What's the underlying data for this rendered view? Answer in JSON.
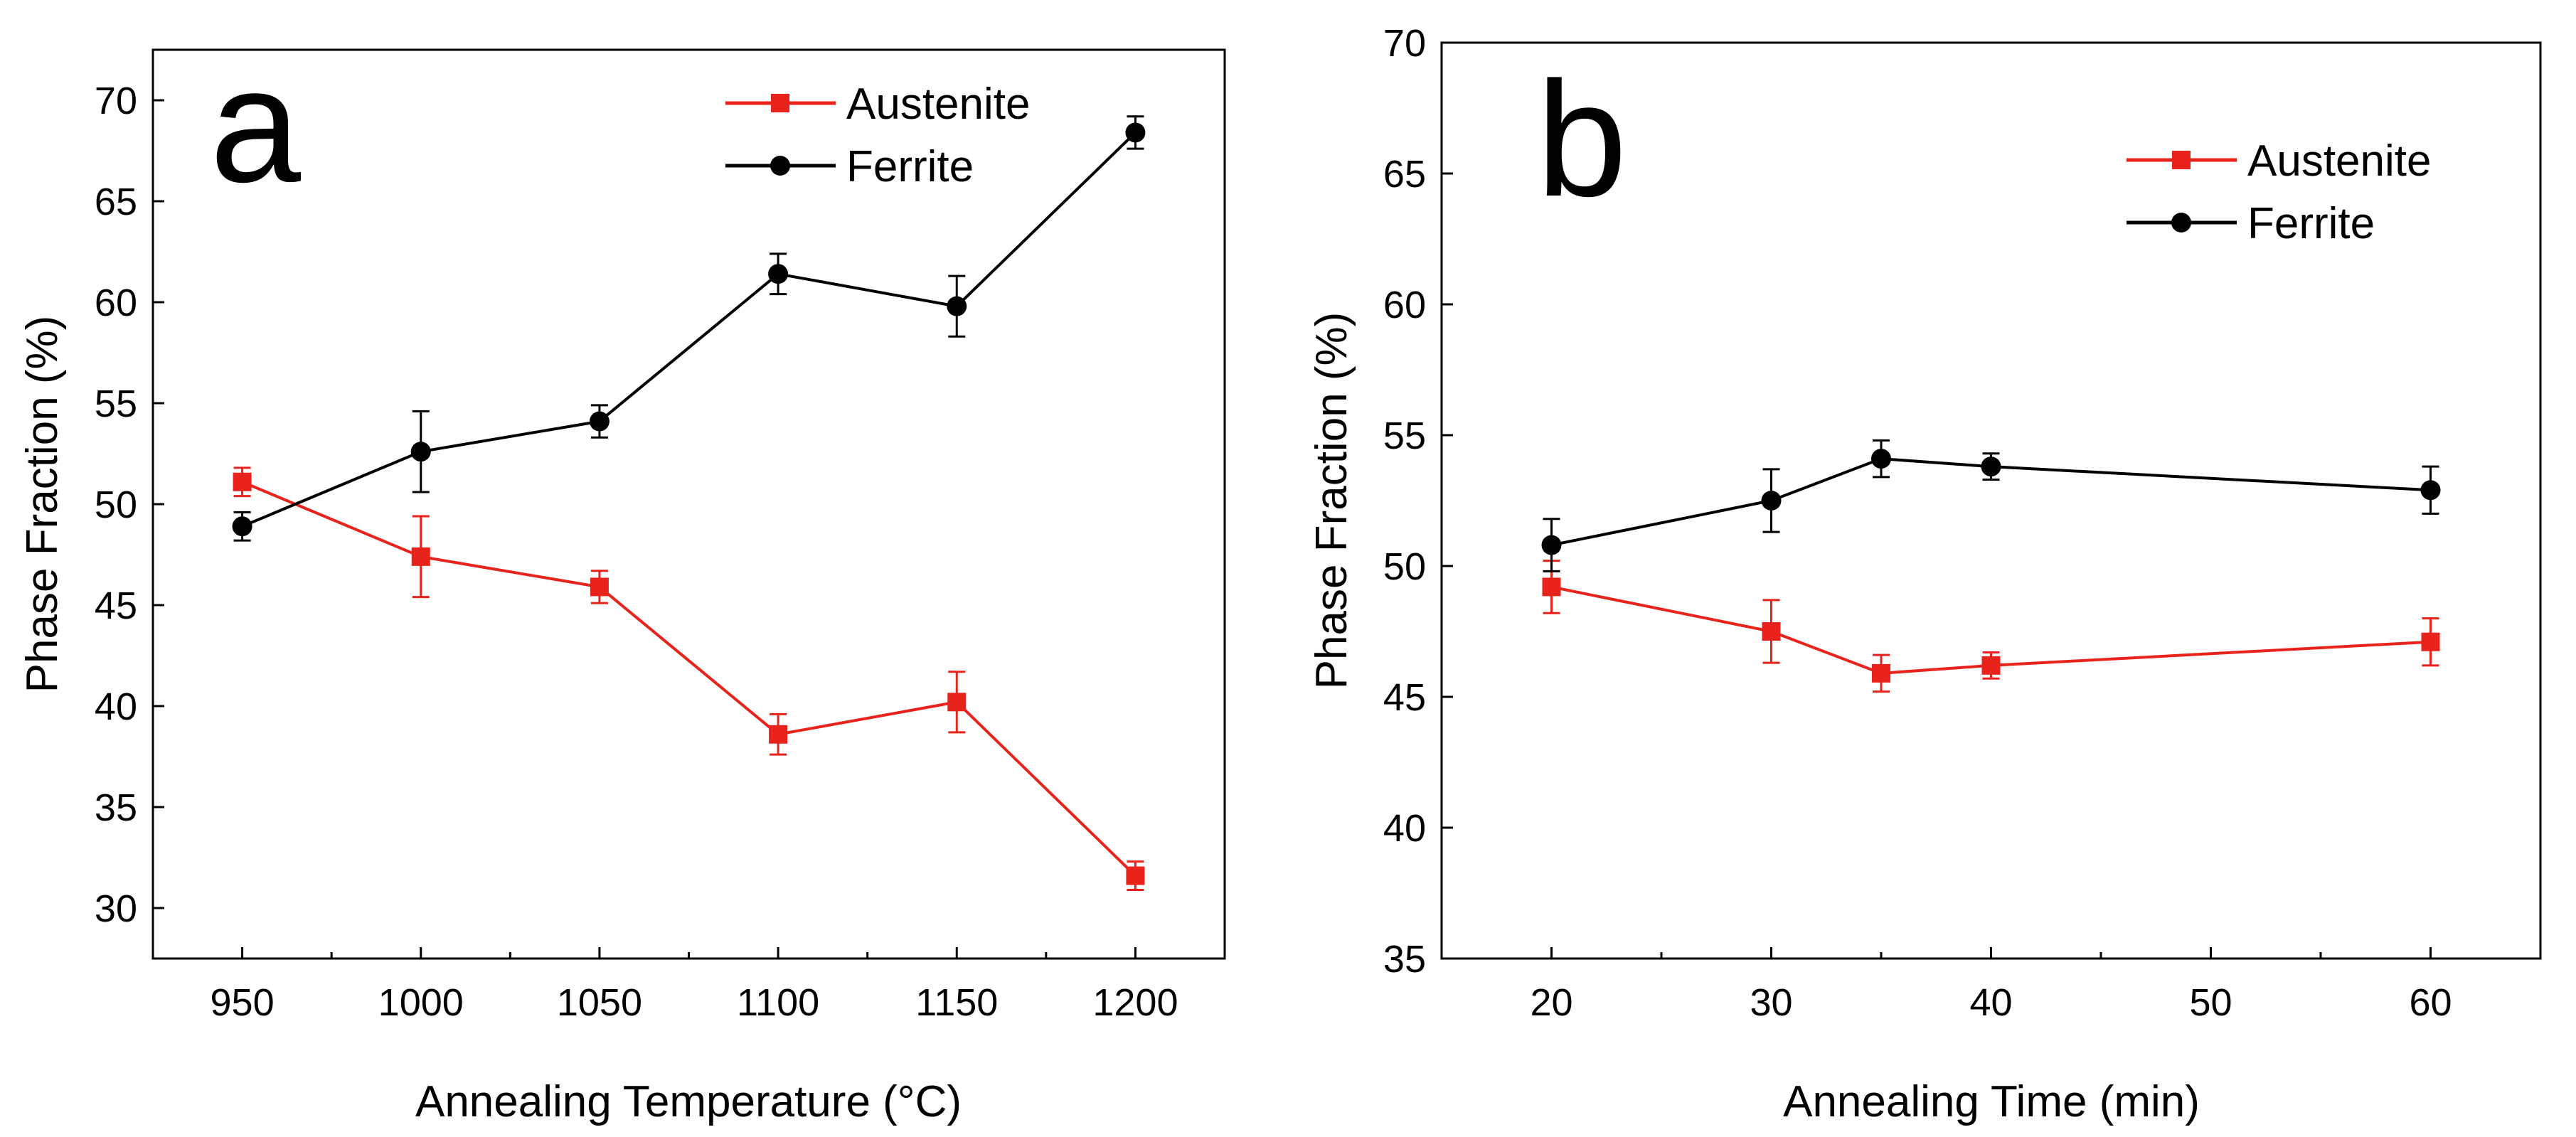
{
  "chart_data": [
    {
      "type": "line",
      "panel_label": "a",
      "xlabel": "Annealing Temperature (°C)",
      "ylabel": "Phase Fraction (%)",
      "xlim": [
        925,
        1225
      ],
      "ylim": [
        27.5,
        72.5
      ],
      "xticks": [
        950,
        1000,
        1050,
        1100,
        1150,
        1200
      ],
      "xtick_labels": [
        "950",
        "1000",
        "1050",
        "1100",
        "1150",
        "1200"
      ],
      "yticks": [
        30,
        35,
        40,
        45,
        50,
        55,
        60,
        65,
        70
      ],
      "ytick_labels": [
        "30",
        "35",
        "40",
        "45",
        "50",
        "55",
        "60",
        "65",
        "70"
      ],
      "legend_position": "top-right",
      "series": [
        {
          "name": "Austenite",
          "color": "#e8231c",
          "marker": "square",
          "x": [
            950,
            1000,
            1050,
            1100,
            1150,
            1200
          ],
          "values": [
            51.1,
            47.4,
            45.9,
            38.6,
            40.2,
            31.6
          ],
          "errors": [
            0.7,
            2.0,
            0.8,
            1.0,
            1.5,
            0.7
          ]
        },
        {
          "name": "Ferrite",
          "color": "#000000",
          "marker": "circle",
          "x": [
            950,
            1000,
            1050,
            1100,
            1150,
            1200
          ],
          "values": [
            48.9,
            52.6,
            54.1,
            61.4,
            59.8,
            68.4
          ],
          "errors": [
            0.7,
            2.0,
            0.8,
            1.0,
            1.5,
            0.8
          ]
        }
      ]
    },
    {
      "type": "line",
      "panel_label": "b",
      "xlabel": "Annealing Time (min)",
      "ylabel": "Phase Fraction (%)",
      "xlim": [
        15,
        65
      ],
      "ylim": [
        35,
        70
      ],
      "xticks": [
        20,
        30,
        40,
        50,
        60
      ],
      "xtick_labels": [
        "20",
        "30",
        "40",
        "50",
        "60"
      ],
      "yticks": [
        35,
        40,
        45,
        50,
        55,
        60,
        65,
        70
      ],
      "ytick_labels": [
        "35",
        "40",
        "45",
        "50",
        "55",
        "60",
        "65",
        "70"
      ],
      "legend_position": "top-right",
      "series": [
        {
          "name": "Austenite",
          "color": "#e8231c",
          "marker": "square",
          "x": [
            20,
            30,
            35,
            40,
            60
          ],
          "values": [
            49.2,
            47.5,
            45.9,
            46.2,
            47.1
          ],
          "errors": [
            1.0,
            1.2,
            0.7,
            0.5,
            0.9
          ]
        },
        {
          "name": "Ferrite",
          "color": "#000000",
          "marker": "circle",
          "x": [
            20,
            30,
            35,
            40,
            60
          ],
          "values": [
            50.8,
            52.5,
            54.1,
            53.8,
            52.9
          ],
          "errors": [
            1.0,
            1.2,
            0.7,
            0.5,
            0.9
          ]
        }
      ]
    }
  ]
}
